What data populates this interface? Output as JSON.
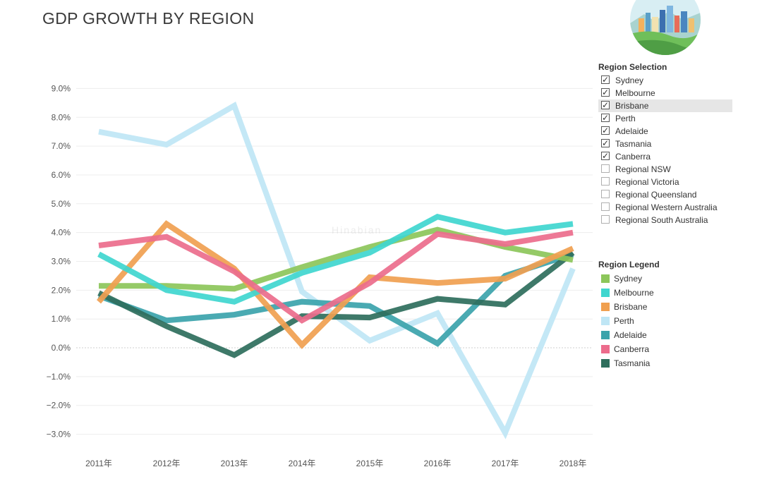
{
  "title": "GDP GROWTH BY REGION",
  "watermark": "Hinabian",
  "region_selection": {
    "title": "Region Selection",
    "items": [
      {
        "label": "Sydney",
        "checked": true
      },
      {
        "label": "Melbourne",
        "checked": true
      },
      {
        "label": "Brisbane",
        "checked": true,
        "highlighted": true
      },
      {
        "label": "Perth",
        "checked": true
      },
      {
        "label": "Adelaide",
        "checked": true
      },
      {
        "label": "Tasmania",
        "checked": true
      },
      {
        "label": "Canberra",
        "checked": true
      },
      {
        "label": "Regional NSW",
        "checked": false
      },
      {
        "label": "Regional Victoria",
        "checked": false
      },
      {
        "label": "Regional Queensland",
        "checked": false
      },
      {
        "label": "Regional Western Australia",
        "checked": false
      },
      {
        "label": "Regional South Australia",
        "checked": false
      }
    ]
  },
  "region_legend": {
    "title": "Region Legend",
    "items": [
      {
        "label": "Sydney",
        "color": "#8cc65a"
      },
      {
        "label": "Melbourne",
        "color": "#3fd6cf"
      },
      {
        "label": "Brisbane",
        "color": "#f0a050"
      },
      {
        "label": "Perth",
        "color": "#bfe6f5"
      },
      {
        "label": "Adelaide",
        "color": "#3ba3ab"
      },
      {
        "label": "Canberra",
        "color": "#ec6c8c"
      },
      {
        "label": "Tasmania",
        "color": "#2e6e5c"
      }
    ]
  },
  "chart_data": {
    "type": "line",
    "title": "GDP GROWTH BY REGION",
    "xlabel": "",
    "ylabel": "",
    "categories": [
      "2011年",
      "2012年",
      "2013年",
      "2014年",
      "2015年",
      "2016年",
      "2017年",
      "2018年"
    ],
    "yticks": [
      "9.0%",
      "8.0%",
      "7.0%",
      "6.0%",
      "5.0%",
      "4.0%",
      "3.0%",
      "2.0%",
      "1.0%",
      "0.0%",
      "−1.0%",
      "−2.0%",
      "−3.0%"
    ],
    "ylim": [
      -3.5,
      9.5
    ],
    "grid": true,
    "legend": "right",
    "series": [
      {
        "name": "Perth",
        "color": "#bfe6f5",
        "values": [
          7.5,
          7.05,
          8.4,
          1.95,
          0.25,
          1.2,
          -2.95,
          2.75
        ]
      },
      {
        "name": "Adelaide",
        "color": "#3ba3ab",
        "values": [
          1.8,
          0.95,
          1.15,
          1.6,
          1.45,
          0.15,
          2.5,
          3.25
        ]
      },
      {
        "name": "Tasmania",
        "color": "#2e6e5c",
        "values": [
          1.9,
          0.75,
          -0.25,
          1.1,
          1.05,
          1.7,
          1.5,
          3.3
        ]
      },
      {
        "name": "Sydney",
        "color": "#8cc65a",
        "values": [
          2.15,
          2.15,
          2.05,
          2.8,
          3.5,
          4.1,
          3.5,
          3.05
        ]
      },
      {
        "name": "Brisbane",
        "color": "#f0a050",
        "values": [
          1.6,
          4.3,
          2.75,
          0.1,
          2.45,
          2.25,
          2.4,
          3.45
        ]
      },
      {
        "name": "Melbourne",
        "color": "#3fd6cf",
        "values": [
          3.25,
          2.0,
          1.6,
          2.6,
          3.3,
          4.55,
          4.0,
          4.3
        ]
      },
      {
        "name": "Canberra",
        "color": "#ec6c8c",
        "values": [
          3.55,
          3.85,
          2.65,
          0.95,
          2.25,
          3.95,
          3.6,
          4.0
        ]
      }
    ]
  }
}
